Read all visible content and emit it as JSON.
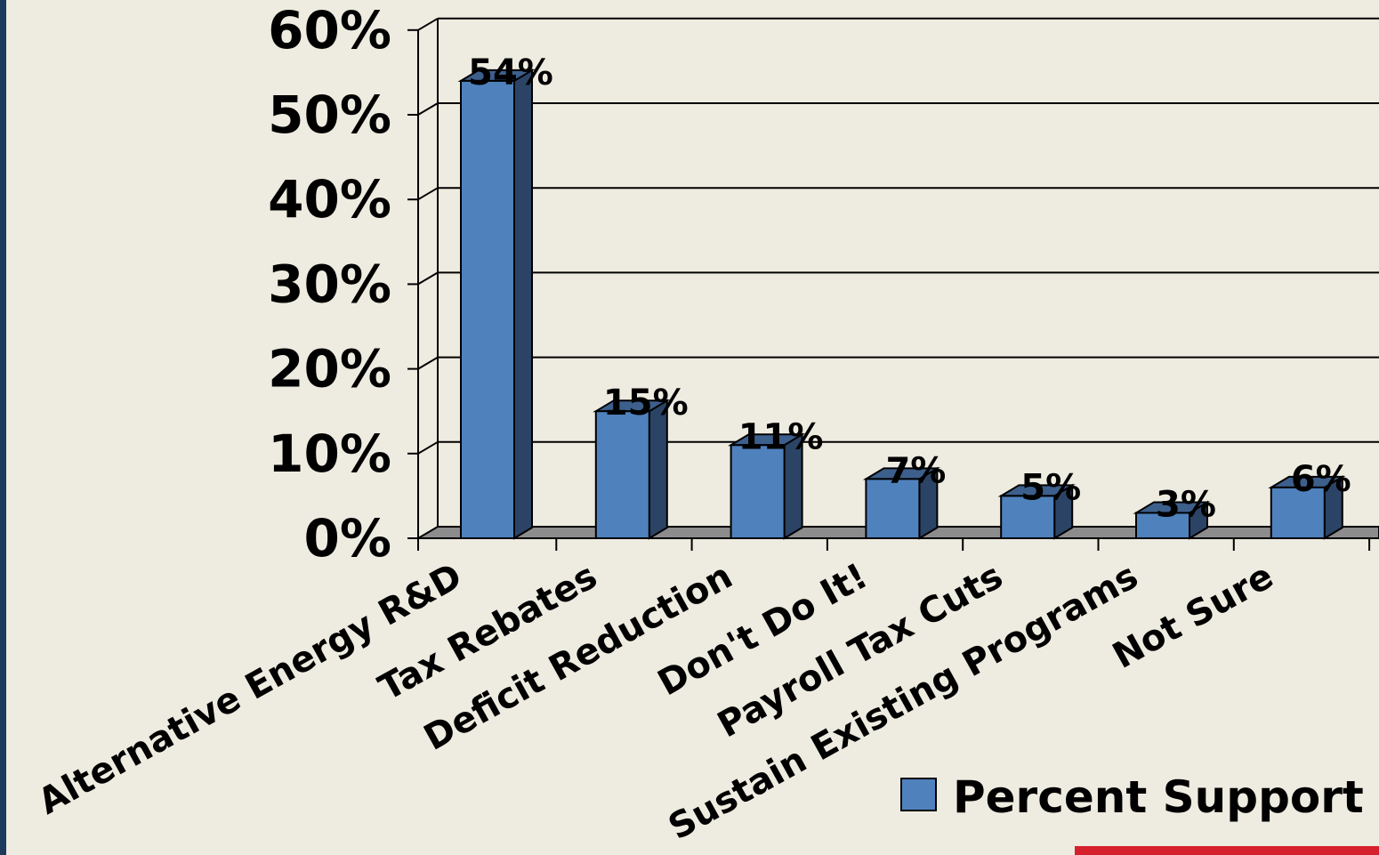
{
  "chart_data": {
    "type": "bar",
    "categories": [
      "Alternative Energy R&D",
      "Tax Rebates",
      "Deficit Reduction",
      "Don't Do It!",
      "Payroll Tax Cuts",
      "Sustain Existing Programs",
      "Not Sure"
    ],
    "series": [
      {
        "name": "Percent Support",
        "values": [
          54,
          15,
          11,
          7,
          5,
          3,
          6
        ]
      }
    ],
    "data_labels": [
      "54%",
      "15%",
      "11%",
      "7%",
      "5%",
      "3%",
      "6%"
    ],
    "y_ticks": [
      "0%",
      "10%",
      "20%",
      "30%",
      "40%",
      "50%",
      "60%"
    ],
    "ylim": [
      0,
      60
    ],
    "grid": true,
    "style": "3d-column",
    "legend": {
      "position": "bottom-right",
      "label": "Percent Support"
    },
    "colors": {
      "bar": "#4F81BD",
      "bar_side": "#2B4466",
      "bar_top": "#3D5F8C",
      "floor": "#8C8C8C",
      "background": "#EEEBE0"
    }
  },
  "legend": {
    "label": "Percent Support"
  }
}
